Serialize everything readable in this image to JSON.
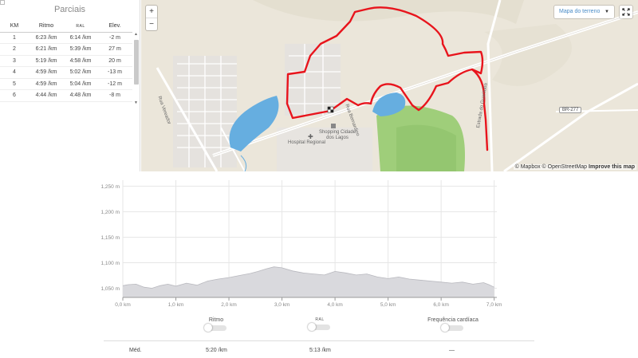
{
  "splits": {
    "title": "Parciais",
    "headers": {
      "km": "KM",
      "pace1": "Ritmo",
      "pace2": "RAL",
      "elev": "Elev."
    },
    "rows": [
      {
        "km": "1",
        "pace1": "6:23 /km",
        "pace2": "6:14 /km",
        "elev": "-2 m"
      },
      {
        "km": "2",
        "pace1": "6:21 /km",
        "pace2": "5:39 /km",
        "elev": "27 m"
      },
      {
        "km": "3",
        "pace1": "5:19 /km",
        "pace2": "4:58 /km",
        "elev": "20 m"
      },
      {
        "km": "4",
        "pace1": "4:59 /km",
        "pace2": "5:02 /km",
        "elev": "-13 m"
      },
      {
        "km": "5",
        "pace1": "4:59 /km",
        "pace2": "5:04 /km",
        "elev": "-12 m"
      },
      {
        "km": "6",
        "pace1": "4:44 /km",
        "pace2": "4:48 /km",
        "elev": "-8 m"
      }
    ]
  },
  "map": {
    "zoom_in": "+",
    "zoom_out": "−",
    "style_select": "Mapa do terreno",
    "road_badge": "BR-277",
    "attribution_1": "© Mapbox © OpenStreetMap ",
    "attribution_2": "Improve this map",
    "labels": {
      "hospital": "Hospital Regional",
      "shopping": "Shopping Cidade dos Lagos",
      "street1": "Estrada do Guarituba",
      "street2": "Rua Bernardino",
      "street3": "Rua Vereador"
    },
    "colors": {
      "route": "#e8141c",
      "water": "#66aee0",
      "park": "#9ccc75",
      "land": "#ede8dd"
    }
  },
  "chart_data": {
    "type": "area",
    "ylabel": "",
    "xlabel": "",
    "yticks": [
      "1,250 m",
      "1,200 m",
      "1,150 m",
      "1,100 m",
      "1,050 m"
    ],
    "ytick_values": [
      1250,
      1200,
      1150,
      1100,
      1050
    ],
    "xticks": [
      "0,0 km",
      "1,0 km",
      "2,0 km",
      "3,0 km",
      "4,0 km",
      "5,0 km",
      "6,0 km",
      "7,0 km"
    ],
    "xtick_values": [
      0,
      1,
      2,
      3,
      4,
      5,
      6,
      7
    ],
    "xlim": [
      0,
      7.05
    ],
    "ylim": [
      1032,
      1262
    ],
    "x": [
      0,
      0.1,
      0.25,
      0.4,
      0.55,
      0.7,
      0.85,
      1.0,
      1.2,
      1.4,
      1.6,
      1.8,
      2.0,
      2.2,
      2.4,
      2.55,
      2.7,
      2.85,
      3.0,
      3.2,
      3.4,
      3.6,
      3.8,
      4.0,
      4.2,
      4.4,
      4.6,
      4.8,
      5.0,
      5.2,
      5.4,
      5.6,
      5.8,
      6.0,
      6.2,
      6.4,
      6.6,
      6.8,
      6.9,
      7.0
    ],
    "y": [
      1055,
      1057,
      1058,
      1052,
      1050,
      1055,
      1058,
      1054,
      1060,
      1056,
      1064,
      1068,
      1071,
      1075,
      1079,
      1083,
      1088,
      1092,
      1090,
      1084,
      1080,
      1078,
      1076,
      1083,
      1080,
      1076,
      1078,
      1072,
      1069,
      1072,
      1068,
      1066,
      1064,
      1062,
      1060,
      1062,
      1058,
      1061,
      1057,
      1052
    ],
    "colors": {
      "fill": "#d9d9dd",
      "line": "#b8b8be",
      "grid": "#e6e6e6",
      "axis": "#999999"
    }
  },
  "toggles": [
    {
      "label": "Ritmo"
    },
    {
      "label": "RAL"
    },
    {
      "label": "Frequência cardíaca"
    }
  ],
  "summary": {
    "label": "Méd.",
    "pace1": "5:20 /km",
    "pace2": "5:13 /km",
    "hr": "—"
  }
}
